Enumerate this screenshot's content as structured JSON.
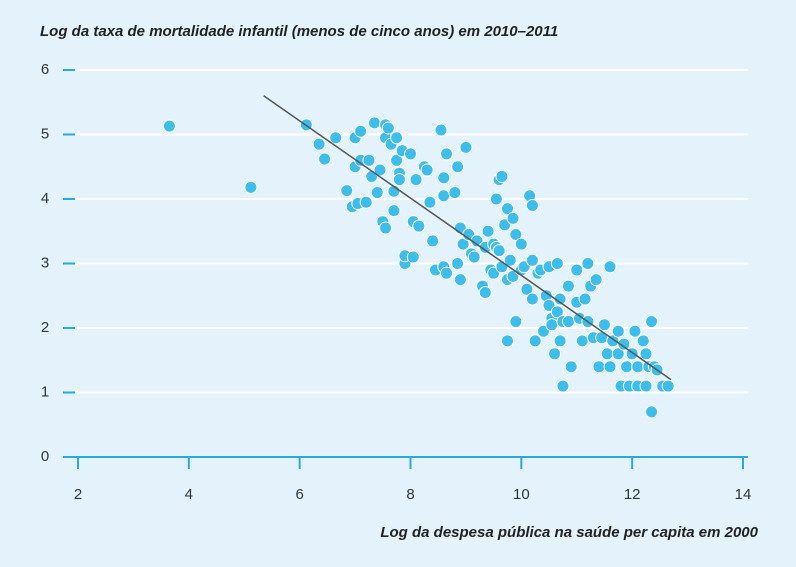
{
  "chart_data": {
    "type": "scatter",
    "title": "Log da taxa de mortalidade infantil (menos de cinco anos) em 2010–2011",
    "x_label": "Log da despesa pública na saúde per capita em 2000",
    "xlim": [
      2,
      14
    ],
    "xticks": [
      2,
      4,
      6,
      8,
      10,
      12,
      14
    ],
    "ylim": [
      0,
      6
    ],
    "yticks": [
      0,
      1,
      2,
      3,
      4,
      5,
      6
    ],
    "grid": true,
    "color": "#3dbde9",
    "trend_color": "#555555",
    "trendline": {
      "x": [
        5.35,
        12.7
      ],
      "y": [
        5.6,
        1.2
      ]
    },
    "x": [
      3.65,
      5.12,
      6.12,
      6.35,
      6.45,
      6.65,
      6.85,
      6.95,
      7.0,
      7.0,
      7.05,
      7.1,
      7.1,
      7.2,
      7.25,
      7.3,
      7.35,
      7.4,
      7.45,
      7.5,
      7.55,
      7.55,
      7.55,
      7.6,
      7.65,
      7.7,
      7.7,
      7.75,
      7.75,
      7.8,
      7.85,
      7.8,
      7.9,
      7.9,
      8.0,
      8.05,
      8.05,
      8.1,
      8.15,
      8.25,
      8.3,
      8.35,
      8.4,
      8.45,
      8.55,
      8.6,
      8.6,
      8.65,
      8.6,
      8.65,
      8.8,
      8.85,
      8.85,
      8.9,
      8.9,
      8.95,
      9.0,
      9.05,
      9.1,
      9.15,
      9.2,
      9.3,
      9.35,
      9.35,
      9.4,
      9.45,
      9.5,
      9.5,
      9.55,
      9.55,
      9.6,
      9.6,
      9.65,
      9.65,
      9.7,
      9.75,
      9.75,
      9.8,
      9.75,
      9.85,
      9.85,
      9.9,
      9.9,
      10.0,
      10.0,
      10.05,
      10.1,
      10.15,
      10.2,
      10.2,
      10.2,
      10.25,
      10.3,
      10.35,
      10.4,
      10.45,
      10.5,
      10.5,
      10.55,
      10.55,
      10.6,
      10.65,
      10.65,
      10.7,
      10.7,
      10.75,
      10.75,
      10.85,
      10.85,
      10.9,
      11.0,
      11.0,
      11.05,
      11.1,
      11.15,
      11.2,
      11.2,
      11.25,
      11.3,
      11.35,
      11.4,
      11.45,
      11.5,
      11.55,
      11.6,
      11.6,
      11.65,
      11.75,
      11.75,
      11.8,
      11.85,
      11.9,
      11.95,
      12.0,
      12.05,
      12.1,
      12.1,
      12.2,
      12.25,
      12.25,
      12.3,
      12.35,
      12.35,
      12.4,
      12.45,
      12.55,
      12.65
    ],
    "values": [
      5.13,
      4.18,
      5.15,
      4.85,
      4.62,
      4.95,
      4.13,
      3.88,
      4.5,
      4.95,
      3.93,
      4.6,
      5.05,
      3.95,
      4.6,
      4.35,
      5.18,
      4.1,
      4.45,
      3.65,
      3.55,
      4.95,
      5.15,
      5.1,
      4.85,
      3.82,
      4.12,
      4.6,
      4.95,
      4.4,
      4.75,
      4.3,
      3.0,
      3.12,
      4.7,
      3.65,
      3.1,
      4.3,
      3.58,
      4.5,
      4.45,
      3.95,
      3.35,
      2.9,
      5.07,
      4.33,
      4.05,
      4.7,
      2.95,
      2.85,
      4.1,
      4.5,
      3.0,
      2.75,
      3.55,
      3.3,
      4.8,
      3.45,
      3.15,
      3.1,
      3.35,
      2.65,
      3.25,
      2.55,
      3.5,
      2.9,
      3.3,
      2.85,
      4.0,
      3.25,
      4.3,
      3.2,
      4.35,
      2.95,
      3.6,
      3.85,
      2.75,
      3.05,
      1.8,
      3.7,
      2.8,
      3.45,
      2.1,
      2.9,
      3.3,
      2.95,
      2.6,
      4.05,
      3.9,
      3.05,
      2.45,
      1.8,
      2.85,
      2.9,
      1.95,
      2.5,
      2.95,
      2.35,
      2.15,
      2.05,
      1.6,
      3.0,
      2.25,
      1.8,
      2.45,
      2.1,
      1.1,
      2.1,
      2.65,
      1.4,
      2.4,
      2.9,
      2.15,
      1.8,
      2.45,
      3.0,
      2.1,
      2.65,
      1.85,
      2.75,
      1.4,
      1.85,
      2.05,
      1.6,
      2.95,
      1.4,
      1.8,
      1.95,
      1.6,
      1.1,
      1.75,
      1.4,
      1.1,
      1.6,
      1.95,
      1.1,
      1.4,
      1.8,
      1.6,
      1.1,
      1.4,
      2.1,
      0.7,
      1.4,
      1.35,
      1.1,
      1.1
    ]
  }
}
